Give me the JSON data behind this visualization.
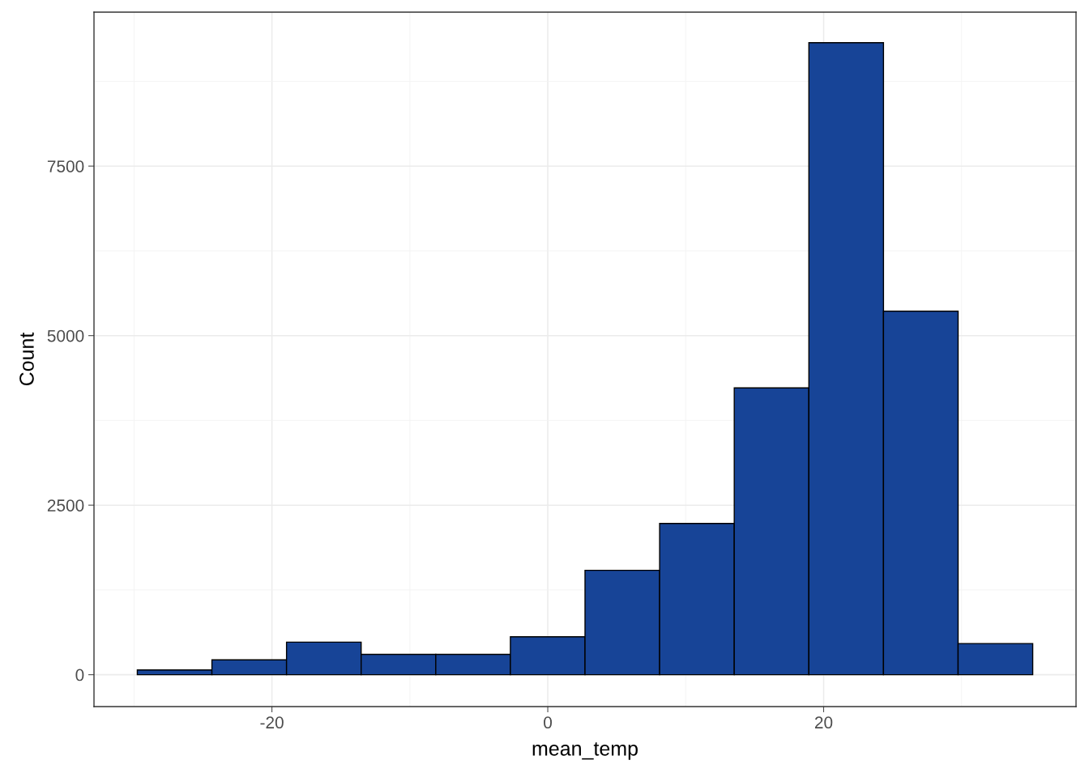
{
  "chart_data": {
    "type": "histogram",
    "xlabel": "mean_temp",
    "ylabel": "Count",
    "bins": [
      -29.76,
      -24.35,
      -18.94,
      -13.53,
      -8.12,
      -2.71,
      2.7,
      8.11,
      13.52,
      18.93,
      24.34,
      29.75,
      35.16
    ],
    "values": [
      70,
      220,
      480,
      300,
      300,
      560,
      1540,
      2230,
      4230,
      9320,
      5360,
      460
    ],
    "color": "#174497",
    "xlim": [
      -32.9,
      38.3
    ],
    "ylim": [
      -470,
      9770
    ],
    "xticks": [
      {
        "value": -20,
        "label": "-20"
      },
      0,
      20
    ],
    "yticks": [
      0,
      2500,
      5000,
      7500
    ],
    "grid": true
  }
}
